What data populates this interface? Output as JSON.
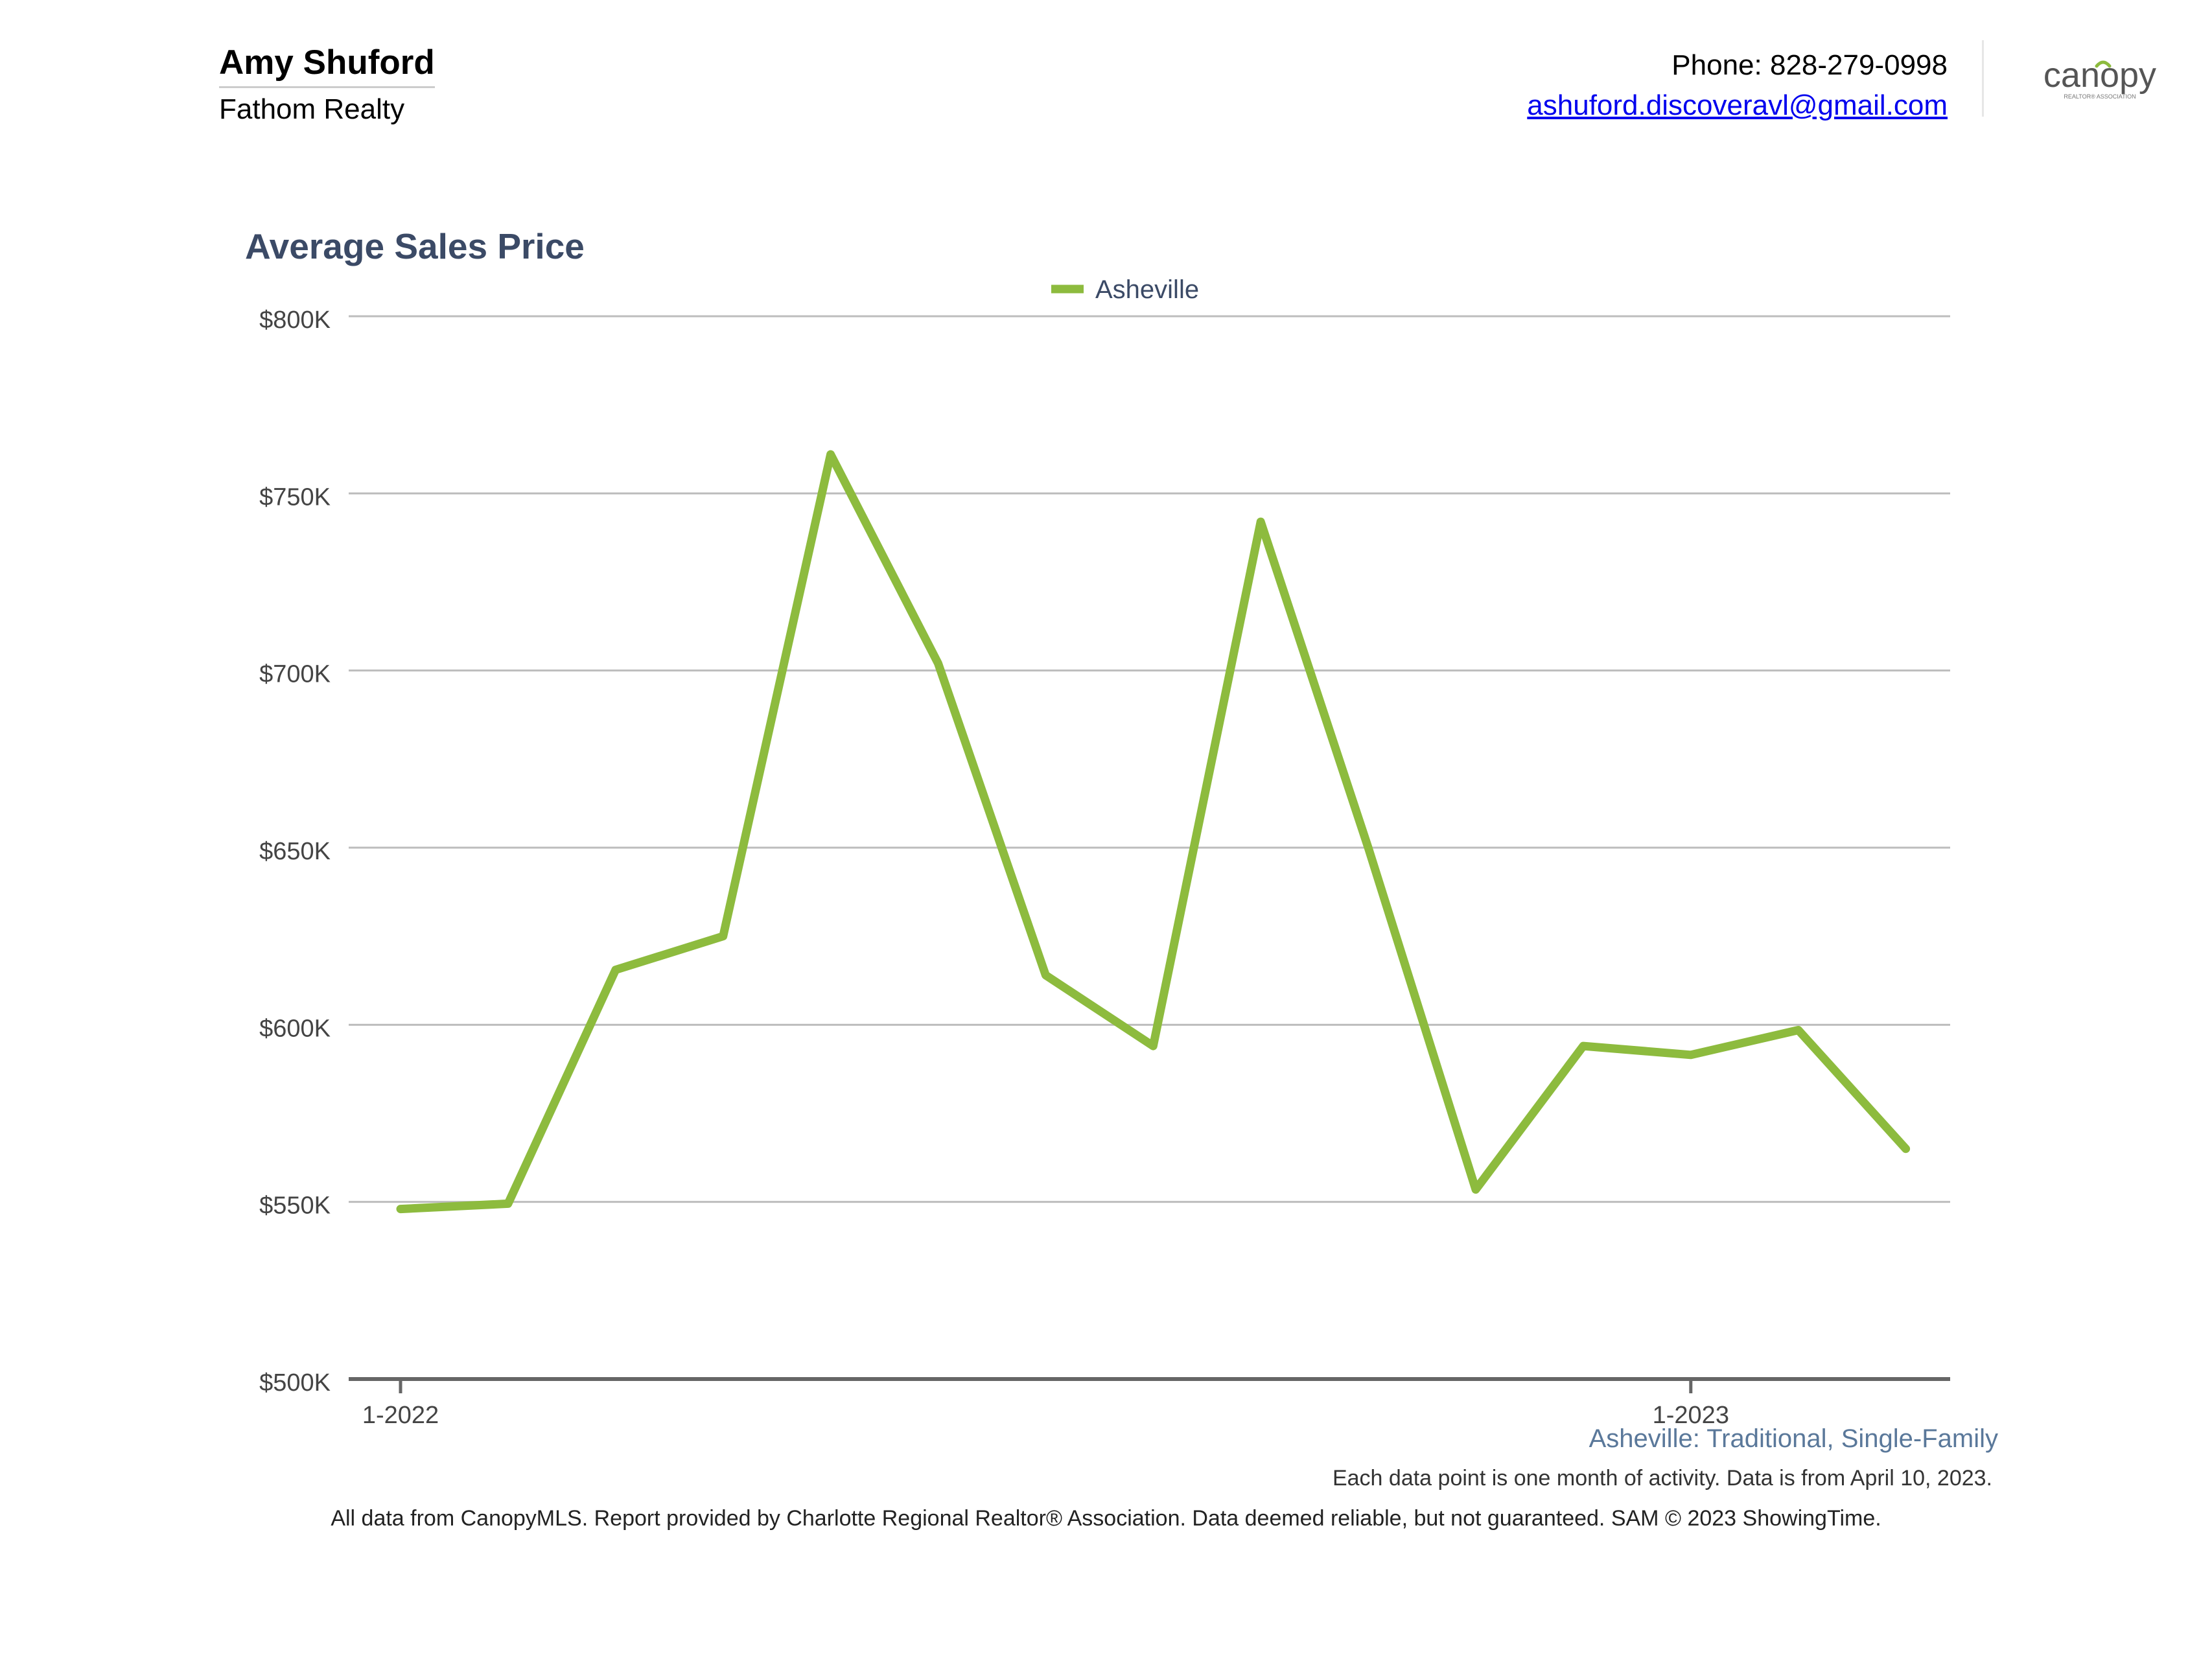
{
  "header": {
    "agent_name": "Amy Shuford",
    "company": "Fathom Realty",
    "phone": "Phone: 828-279-0998",
    "email": "ashuford.discoveravl@gmail.com",
    "logo_text": "canopy",
    "logo_subtext": "REALTOR® ASSOCIATION"
  },
  "chart_data": {
    "type": "line",
    "title": "Average Sales Price",
    "xlabel": "",
    "ylabel": "",
    "x": [
      "1-2022",
      "2-2022",
      "3-2022",
      "4-2022",
      "5-2022",
      "6-2022",
      "7-2022",
      "8-2022",
      "9-2022",
      "10-2022",
      "11-2022",
      "12-2022",
      "1-2023",
      "2-2023",
      "3-2023"
    ],
    "x_tick_labels": [
      "1-2022",
      "1-2023"
    ],
    "x_tick_values": [
      "1-2022",
      "1-2023"
    ],
    "series": [
      {
        "name": "Asheville",
        "color": "#8dbb3e",
        "values": [
          548000,
          549500,
          615500,
          625000,
          761000,
          702000,
          614000,
          594000,
          742000,
          650000,
          553500,
          594000,
          591500,
          598500,
          565000
        ]
      }
    ],
    "ylim": [
      500000,
      800000
    ],
    "y_ticks": [
      500000,
      550000,
      600000,
      650000,
      700000,
      750000,
      800000
    ],
    "y_tick_labels": [
      "$500K",
      "$550K",
      "$600K",
      "$650K",
      "$700K",
      "$750K",
      "$800K"
    ],
    "legend": "top-center",
    "grid": true,
    "subtitle": "Asheville: Traditional, Single-Family"
  },
  "note": "Each data point is one month of activity. Data is from April 10, 2023.",
  "footer": "All data from CanopyMLS. Report provided by Charlotte Regional Realtor® Association. Data deemed reliable, but not guaranteed. SAM © 2023 ShowingTime."
}
